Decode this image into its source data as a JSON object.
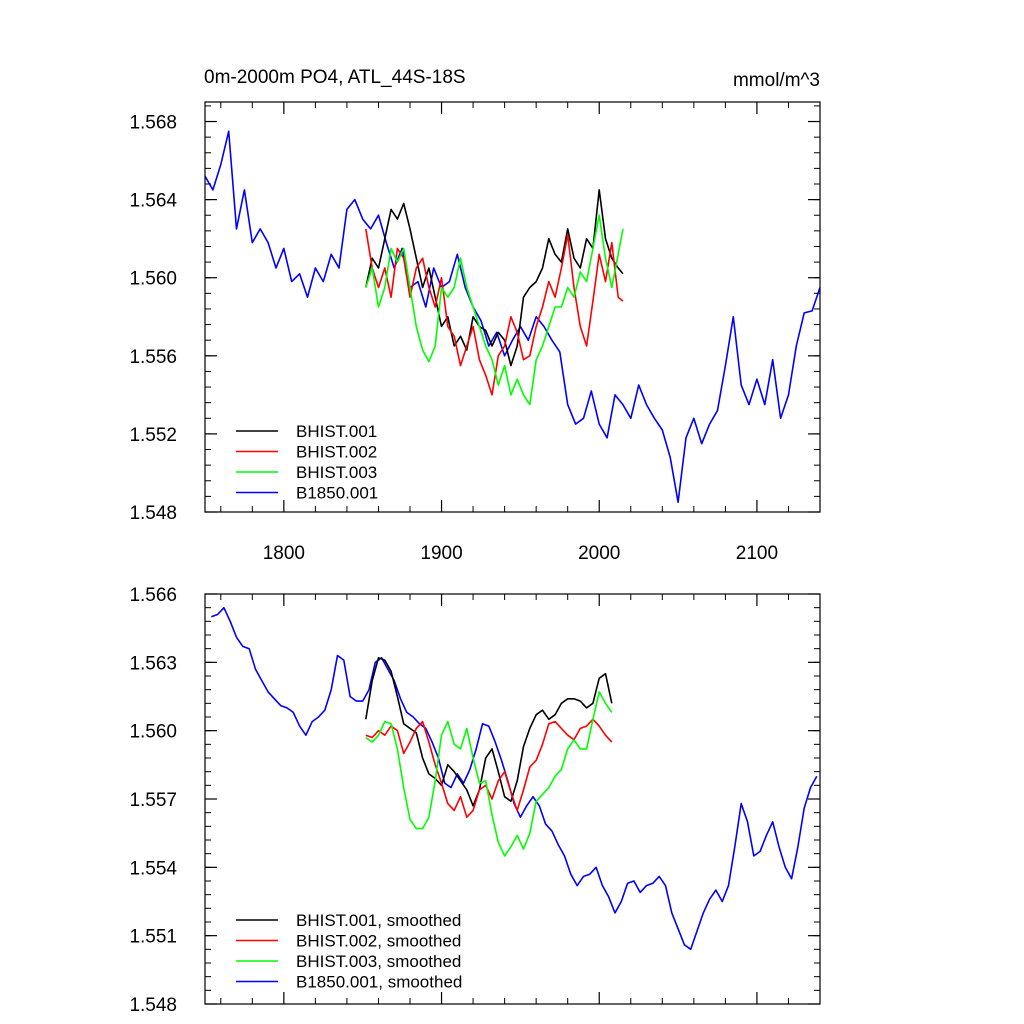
{
  "chart_data": [
    {
      "type": "line",
      "title": "0m-2000m PO4, ATL_44S-18S",
      "units": "mmol/m^3",
      "xlim": [
        1750,
        2140
      ],
      "ylim": [
        1.548,
        1.569
      ],
      "xticks": [
        1800,
        1900,
        2000,
        2100
      ],
      "xtick_labels": [
        "1800",
        "1900",
        "2000",
        "2100"
      ],
      "yticks": [
        1.548,
        1.552,
        1.556,
        1.56,
        1.564,
        1.568
      ],
      "ytick_labels": [
        "1.548",
        "1.552",
        "1.556",
        "1.560",
        "1.564",
        "1.568"
      ],
      "legend": "bottom-left",
      "series": [
        {
          "name": "BHIST.001",
          "color": "#000000",
          "x": [
            1852,
            1856,
            1860,
            1864,
            1868,
            1872,
            1876,
            1880,
            1884,
            1888,
            1892,
            1896,
            1900,
            1904,
            1908,
            1912,
            1916,
            1920,
            1924,
            1928,
            1932,
            1936,
            1940,
            1944,
            1948,
            1952,
            1956,
            1960,
            1964,
            1968,
            1972,
            1976,
            1980,
            1984,
            1988,
            1992,
            1996,
            2000,
            2004,
            2008,
            2012,
            2015
          ],
          "y": [
            1.5595,
            1.561,
            1.5605,
            1.562,
            1.5635,
            1.563,
            1.5638,
            1.5625,
            1.561,
            1.5595,
            1.5605,
            1.559,
            1.5575,
            1.558,
            1.5565,
            1.557,
            1.5563,
            1.558,
            1.5575,
            1.5573,
            1.5565,
            1.5572,
            1.5568,
            1.5555,
            1.5565,
            1.559,
            1.5595,
            1.5598,
            1.5605,
            1.562,
            1.5612,
            1.5608,
            1.5625,
            1.561,
            1.5605,
            1.562,
            1.5615,
            1.5645,
            1.562,
            1.561,
            1.5605,
            1.5602
          ]
        },
        {
          "name": "BHIST.002",
          "color": "#ff0000",
          "x": [
            1852,
            1856,
            1860,
            1864,
            1868,
            1872,
            1876,
            1880,
            1884,
            1888,
            1892,
            1896,
            1900,
            1904,
            1908,
            1912,
            1916,
            1920,
            1924,
            1928,
            1932,
            1936,
            1940,
            1944,
            1948,
            1952,
            1956,
            1960,
            1964,
            1968,
            1972,
            1976,
            1980,
            1984,
            1988,
            1992,
            1996,
            2000,
            2004,
            2008,
            2012,
            2015
          ],
          "y": [
            1.5625,
            1.5605,
            1.5595,
            1.5605,
            1.559,
            1.5615,
            1.561,
            1.559,
            1.5605,
            1.561,
            1.5595,
            1.5585,
            1.56,
            1.5575,
            1.557,
            1.5555,
            1.5565,
            1.5575,
            1.5558,
            1.555,
            1.554,
            1.556,
            1.5565,
            1.558,
            1.5572,
            1.5558,
            1.556,
            1.5575,
            1.5585,
            1.5598,
            1.559,
            1.5605,
            1.5622,
            1.5595,
            1.5575,
            1.5565,
            1.5588,
            1.5612,
            1.5598,
            1.5618,
            1.559,
            1.5588
          ]
        },
        {
          "name": "BHIST.003",
          "color": "#00ff00",
          "x": [
            1852,
            1856,
            1860,
            1864,
            1868,
            1872,
            1876,
            1880,
            1884,
            1888,
            1892,
            1896,
            1900,
            1904,
            1908,
            1912,
            1916,
            1920,
            1924,
            1928,
            1932,
            1936,
            1940,
            1944,
            1948,
            1952,
            1956,
            1960,
            1964,
            1968,
            1972,
            1976,
            1980,
            1984,
            1988,
            1992,
            1996,
            2000,
            2004,
            2008,
            2012,
            2015
          ],
          "y": [
            1.5595,
            1.5605,
            1.5585,
            1.5595,
            1.5615,
            1.5608,
            1.5615,
            1.5595,
            1.5575,
            1.5563,
            1.5557,
            1.5565,
            1.5595,
            1.559,
            1.5595,
            1.561,
            1.5595,
            1.5585,
            1.5575,
            1.5565,
            1.5558,
            1.5545,
            1.5555,
            1.554,
            1.5548,
            1.554,
            1.5535,
            1.5558,
            1.5565,
            1.5575,
            1.5585,
            1.5585,
            1.5595,
            1.559,
            1.5603,
            1.5598,
            1.5615,
            1.5632,
            1.561,
            1.5595,
            1.5612,
            1.5625
          ]
        },
        {
          "name": "B1850.001",
          "color": "#0000ff",
          "x": [
            1750,
            1755,
            1760,
            1765,
            1770,
            1775,
            1780,
            1785,
            1790,
            1795,
            1800,
            1805,
            1810,
            1815,
            1820,
            1825,
            1830,
            1835,
            1840,
            1845,
            1850,
            1855,
            1860,
            1865,
            1870,
            1875,
            1880,
            1885,
            1890,
            1895,
            1900,
            1905,
            1910,
            1915,
            1920,
            1925,
            1930,
            1935,
            1940,
            1945,
            1950,
            1955,
            1960,
            1965,
            1970,
            1975,
            1980,
            1985,
            1990,
            1995,
            2000,
            2005,
            2010,
            2015,
            2020,
            2025,
            2030,
            2035,
            2040,
            2045,
            2050,
            2055,
            2060,
            2065,
            2070,
            2075,
            2080,
            2085,
            2090,
            2095,
            2100,
            2105,
            2110,
            2115,
            2120,
            2125,
            2130,
            2135,
            2140
          ],
          "y": [
            1.5652,
            1.5645,
            1.5658,
            1.5675,
            1.5625,
            1.5645,
            1.5618,
            1.5625,
            1.5618,
            1.5605,
            1.5615,
            1.5598,
            1.5602,
            1.559,
            1.5605,
            1.5598,
            1.5612,
            1.5605,
            1.5635,
            1.564,
            1.563,
            1.5625,
            1.5632,
            1.5618,
            1.5605,
            1.5615,
            1.5595,
            1.5598,
            1.5585,
            1.5605,
            1.5595,
            1.5598,
            1.5612,
            1.5595,
            1.5585,
            1.5578,
            1.5565,
            1.5572,
            1.556,
            1.5568,
            1.5575,
            1.5568,
            1.558,
            1.5575,
            1.5568,
            1.5562,
            1.5535,
            1.5525,
            1.5528,
            1.5542,
            1.5525,
            1.5518,
            1.554,
            1.5535,
            1.5528,
            1.5545,
            1.5535,
            1.5528,
            1.5522,
            1.5508,
            1.5485,
            1.5518,
            1.5528,
            1.5515,
            1.5525,
            1.5532,
            1.5555,
            1.558,
            1.5545,
            1.5535,
            1.5548,
            1.5535,
            1.5558,
            1.5528,
            1.554,
            1.5565,
            1.5582,
            1.5583,
            1.5595
          ]
        }
      ]
    },
    {
      "type": "line",
      "title": "",
      "xlim": [
        1750,
        2140
      ],
      "ylim": [
        1.548,
        1.566
      ],
      "xticks": [
        1800,
        1900,
        2000,
        2100
      ],
      "yticks": [
        1.548,
        1.551,
        1.554,
        1.557,
        1.56,
        1.563,
        1.566
      ],
      "ytick_labels": [
        "1.548",
        "1.551",
        "1.554",
        "1.557",
        "1.560",
        "1.563",
        "1.566"
      ],
      "legend": "bottom-left",
      "series": [
        {
          "name": "BHIST.001, smoothed",
          "color": "#000000",
          "x": [
            1852,
            1856,
            1860,
            1864,
            1868,
            1872,
            1876,
            1880,
            1884,
            1888,
            1892,
            1896,
            1900,
            1904,
            1908,
            1912,
            1916,
            1920,
            1924,
            1928,
            1932,
            1936,
            1940,
            1944,
            1948,
            1952,
            1956,
            1960,
            1964,
            1968,
            1972,
            1976,
            1980,
            1984,
            1988,
            1992,
            1996,
            2000,
            2004,
            2008
          ],
          "y": [
            1.5605,
            1.5622,
            1.5632,
            1.5631,
            1.5626,
            1.5615,
            1.5603,
            1.5601,
            1.5599,
            1.5588,
            1.5581,
            1.5579,
            1.5576,
            1.5585,
            1.5582,
            1.5578,
            1.5574,
            1.5567,
            1.5574,
            1.5588,
            1.5592,
            1.5582,
            1.5571,
            1.5569,
            1.5578,
            1.5593,
            1.5601,
            1.5607,
            1.5609,
            1.5605,
            1.5607,
            1.5612,
            1.5614,
            1.5614,
            1.5613,
            1.561,
            1.5612,
            1.5623,
            1.5625,
            1.5612
          ]
        },
        {
          "name": "BHIST.002, smoothed",
          "color": "#ff0000",
          "x": [
            1852,
            1856,
            1860,
            1864,
            1868,
            1872,
            1876,
            1880,
            1884,
            1888,
            1892,
            1896,
            1900,
            1904,
            1908,
            1912,
            1916,
            1920,
            1924,
            1928,
            1932,
            1936,
            1940,
            1944,
            1948,
            1952,
            1956,
            1960,
            1964,
            1968,
            1972,
            1976,
            1980,
            1984,
            1988,
            1992,
            1996,
            2000,
            2004,
            2008
          ],
          "y": [
            1.5598,
            1.5597,
            1.56,
            1.5598,
            1.5602,
            1.56,
            1.559,
            1.5595,
            1.5601,
            1.5604,
            1.5595,
            1.5585,
            1.5577,
            1.5568,
            1.5565,
            1.5571,
            1.5562,
            1.5565,
            1.5574,
            1.5576,
            1.557,
            1.5578,
            1.5582,
            1.5573,
            1.5565,
            1.5574,
            1.5584,
            1.5587,
            1.5594,
            1.5603,
            1.5604,
            1.5601,
            1.5598,
            1.5596,
            1.5601,
            1.5602,
            1.5605,
            1.5602,
            1.5598,
            1.5595
          ]
        },
        {
          "name": "BHIST.003, smoothed",
          "color": "#00ff00",
          "x": [
            1852,
            1856,
            1860,
            1864,
            1868,
            1872,
            1876,
            1880,
            1884,
            1888,
            1892,
            1896,
            1900,
            1904,
            1908,
            1912,
            1916,
            1920,
            1924,
            1928,
            1932,
            1936,
            1940,
            1944,
            1948,
            1952,
            1956,
            1960,
            1964,
            1968,
            1972,
            1976,
            1980,
            1984,
            1988,
            1992,
            1996,
            2000,
            2004,
            2008
          ],
          "y": [
            1.5597,
            1.5595,
            1.5598,
            1.5604,
            1.5603,
            1.5592,
            1.5575,
            1.5561,
            1.5557,
            1.5557,
            1.5562,
            1.5578,
            1.5598,
            1.5604,
            1.5594,
            1.5592,
            1.5601,
            1.5588,
            1.5577,
            1.5578,
            1.5563,
            1.5551,
            1.5545,
            1.5549,
            1.5554,
            1.5548,
            1.5555,
            1.5569,
            1.5572,
            1.5575,
            1.558,
            1.5583,
            1.5592,
            1.5596,
            1.5592,
            1.5592,
            1.5605,
            1.5617,
            1.5612,
            1.5608
          ]
        },
        {
          "name": "B1850.001, smoothed",
          "color": "#0000ff",
          "x": [
            1754,
            1758,
            1762,
            1766,
            1770,
            1774,
            1778,
            1782,
            1786,
            1790,
            1794,
            1798,
            1802,
            1806,
            1810,
            1814,
            1818,
            1822,
            1826,
            1830,
            1834,
            1838,
            1842,
            1846,
            1850,
            1854,
            1858,
            1862,
            1866,
            1870,
            1874,
            1878,
            1882,
            1886,
            1890,
            1894,
            1898,
            1902,
            1906,
            1910,
            1914,
            1918,
            1922,
            1926,
            1930,
            1934,
            1938,
            1942,
            1946,
            1950,
            1954,
            1958,
            1962,
            1966,
            1970,
            1974,
            1978,
            1982,
            1986,
            1990,
            1994,
            1998,
            2002,
            2006,
            2010,
            2014,
            2018,
            2022,
            2026,
            2030,
            2034,
            2038,
            2042,
            2046,
            2050,
            2054,
            2058,
            2062,
            2066,
            2070,
            2074,
            2078,
            2082,
            2086,
            2090,
            2094,
            2098,
            2102,
            2106,
            2110,
            2114,
            2118,
            2122,
            2126,
            2130,
            2134,
            2138
          ],
          "y": [
            1.565,
            1.5651,
            1.5654,
            1.5648,
            1.5641,
            1.5637,
            1.5636,
            1.5627,
            1.5622,
            1.5617,
            1.5614,
            1.5611,
            1.561,
            1.5608,
            1.5602,
            1.5598,
            1.5604,
            1.5606,
            1.5609,
            1.5618,
            1.5633,
            1.5631,
            1.5615,
            1.5613,
            1.5613,
            1.5618,
            1.563,
            1.5632,
            1.5627,
            1.5622,
            1.5614,
            1.5608,
            1.5606,
            1.5603,
            1.5601,
            1.5595,
            1.5588,
            1.5577,
            1.5575,
            1.5581,
            1.5577,
            1.5583,
            1.5592,
            1.5603,
            1.5602,
            1.5595,
            1.5587,
            1.5578,
            1.5568,
            1.5562,
            1.5567,
            1.5571,
            1.5567,
            1.5559,
            1.5556,
            1.555,
            1.5545,
            1.5537,
            1.5532,
            1.5536,
            1.5537,
            1.554,
            1.5532,
            1.5527,
            1.552,
            1.5525,
            1.5533,
            1.5534,
            1.5529,
            1.5532,
            1.5533,
            1.5536,
            1.5532,
            1.552,
            1.5513,
            1.5506,
            1.5504,
            1.5512,
            1.552,
            1.5526,
            1.553,
            1.5525,
            1.5532,
            1.5549,
            1.5568,
            1.556,
            1.5545,
            1.5547,
            1.5554,
            1.556,
            1.5549,
            1.554,
            1.5535,
            1.5549,
            1.5566,
            1.5575,
            1.558
          ]
        }
      ]
    }
  ]
}
